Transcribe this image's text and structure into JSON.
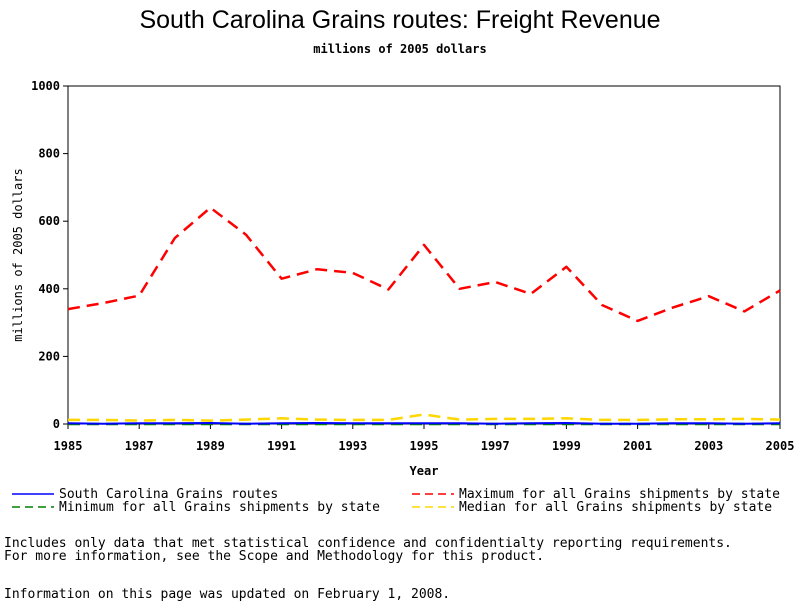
{
  "chart_data": {
    "type": "line",
    "title": "South Carolina Grains routes: Freight Revenue",
    "subtitle": "millions of 2005 dollars",
    "xlabel": "Year",
    "ylabel": "millions of 2005 dollars",
    "xlim": [
      1985,
      2005
    ],
    "ylim": [
      0,
      1000
    ],
    "x_ticks": [
      1985,
      1987,
      1989,
      1991,
      1993,
      1995,
      1997,
      1999,
      2001,
      2003,
      2005
    ],
    "y_ticks": [
      0,
      200,
      400,
      600,
      800,
      1000
    ],
    "x": [
      1985,
      1986,
      1987,
      1988,
      1989,
      1990,
      1991,
      1992,
      1993,
      1994,
      1995,
      1996,
      1997,
      1998,
      1999,
      2000,
      2001,
      2002,
      2003,
      2004,
      2005
    ],
    "grid": false,
    "legend_position": "bottom",
    "series": [
      {
        "name": "South Carolina Grains routes",
        "color": "#0000ff",
        "dash": "solid",
        "values": [
          2,
          1,
          2,
          2,
          3,
          1,
          2,
          3,
          2,
          2,
          2,
          2,
          1,
          2,
          3,
          1,
          1,
          2,
          2,
          1,
          2
        ]
      },
      {
        "name": "Maximum for all Grains shipments by state",
        "color": "#ff0000",
        "dash": "dashed",
        "values": [
          340,
          358,
          380,
          550,
          640,
          560,
          430,
          458,
          447,
          398,
          530,
          400,
          420,
          385,
          465,
          352,
          305,
          345,
          378,
          333,
          395
        ]
      },
      {
        "name": "Minimum for all Grains shipments by state",
        "color": "#008000",
        "dash": "dashed",
        "values": [
          0,
          0,
          0,
          0,
          0,
          0,
          0,
          0,
          0,
          0,
          0,
          0,
          0,
          0,
          0,
          0,
          0,
          0,
          0,
          0,
          0
        ]
      },
      {
        "name": "Median for all Grains shipments by state",
        "color": "#ffd700",
        "dash": "dashed",
        "values": [
          12,
          12,
          10,
          12,
          10,
          13,
          17,
          13,
          12,
          12,
          28,
          13,
          15,
          15,
          17,
          12,
          12,
          14,
          14,
          15,
          13
        ]
      }
    ]
  },
  "footnotes": {
    "line1": "Includes only data that met statistical confidence and confidentialty reporting requirements.",
    "line2": "For more information, see the Scope and Methodology for this product.",
    "line3": "Information on this page was updated on February 1, 2008."
  }
}
